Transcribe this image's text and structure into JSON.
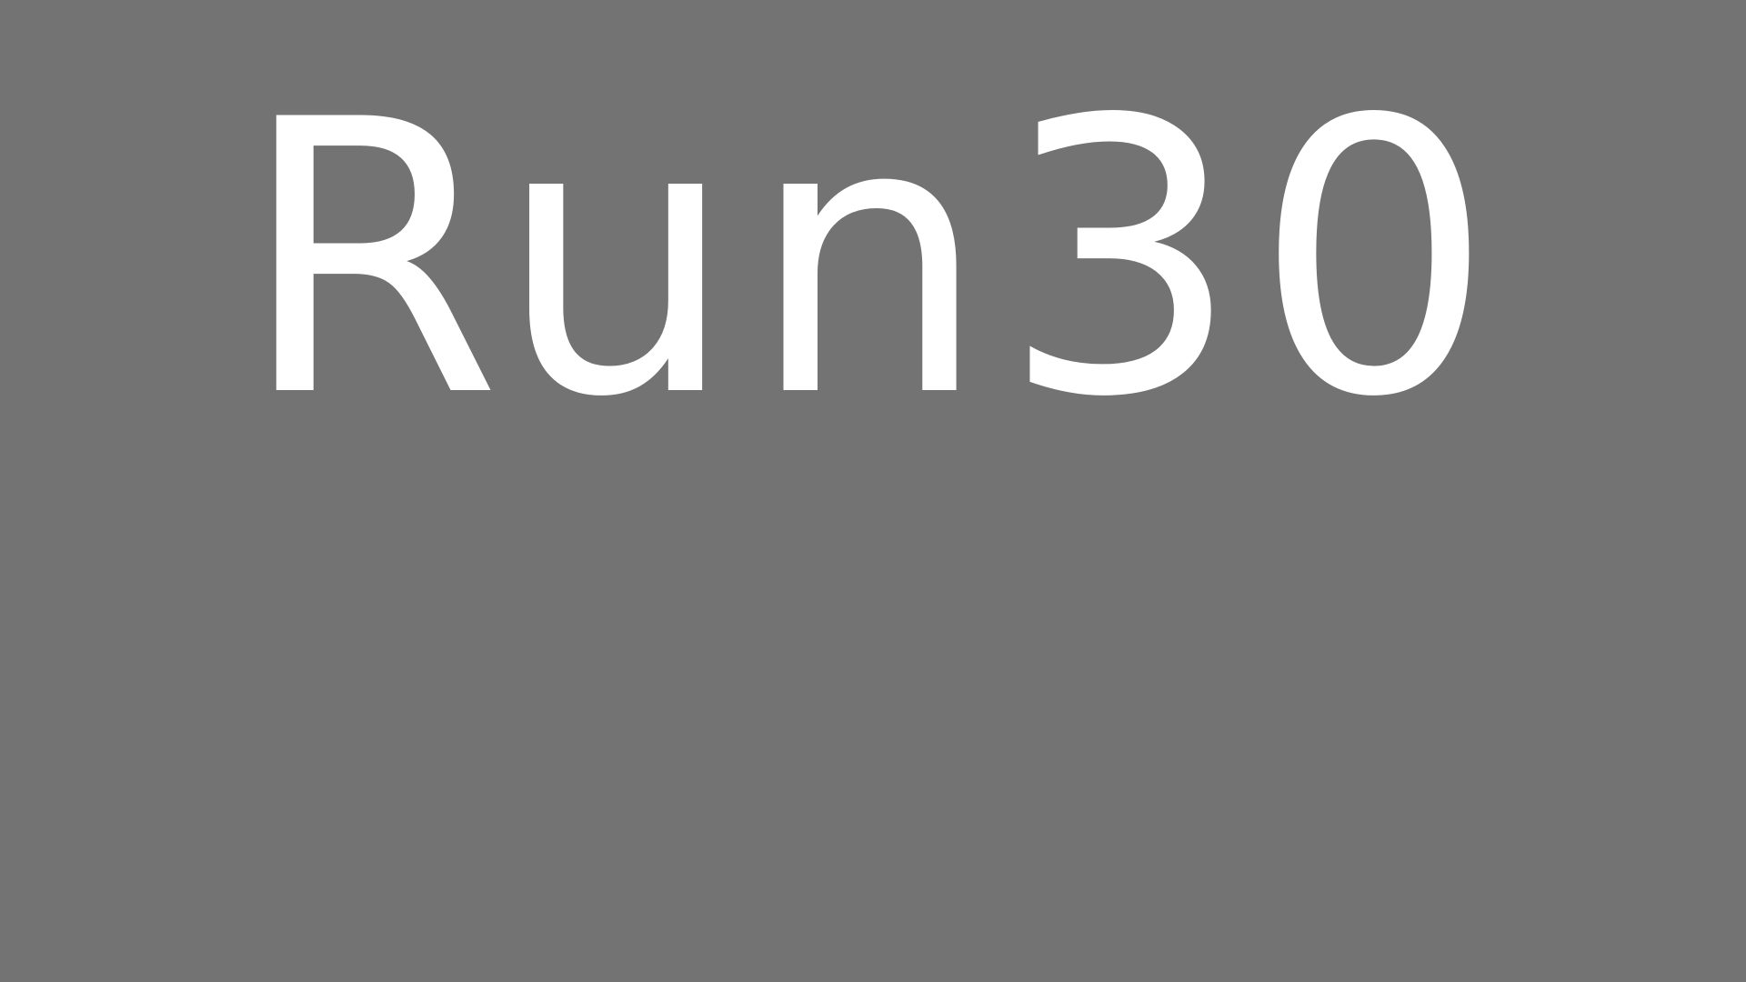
{
  "screen": {
    "title": "Run30",
    "background_color": "#737373",
    "text_color": "#ffffff"
  }
}
